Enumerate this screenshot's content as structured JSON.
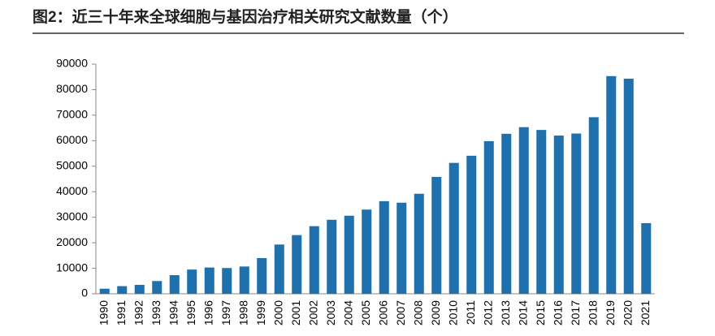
{
  "chart_data": {
    "type": "bar",
    "title": "图2：近三十年来全球细胞与基因治疗相关研究文献数量（个）",
    "categories": [
      "1990",
      "1991",
      "1992",
      "1993",
      "1994",
      "1995",
      "1996",
      "1997",
      "1998",
      "1999",
      "2000",
      "2001",
      "2002",
      "2003",
      "2004",
      "2005",
      "2006",
      "2007",
      "2008",
      "2009",
      "2010",
      "2011",
      "2012",
      "2013",
      "2014",
      "2015",
      "2016",
      "2017",
      "2018",
      "2019",
      "2020",
      "2021"
    ],
    "values": [
      2000,
      3000,
      3500,
      5000,
      7300,
      9500,
      10300,
      10100,
      10700,
      14000,
      19300,
      23000,
      26500,
      29000,
      30600,
      33000,
      36300,
      35700,
      39200,
      45800,
      51300,
      54100,
      59800,
      62700,
      65300,
      64200,
      62000,
      62800,
      69200,
      85300,
      84300,
      27700
    ],
    "color": "#1f71ad",
    "ylim": [
      0,
      90000
    ],
    "yticks": [
      0,
      10000,
      20000,
      30000,
      40000,
      50000,
      60000,
      70000,
      80000,
      90000
    ]
  }
}
